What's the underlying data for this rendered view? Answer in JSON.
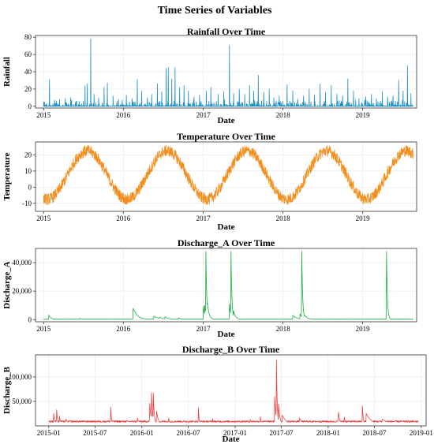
{
  "figure": {
    "title": "Time Series of Variables"
  },
  "chart_data": [
    {
      "id": "rainfall",
      "type": "line",
      "title": "Rainfall Over Time",
      "xlabel": "Date",
      "ylabel": "Rainfall",
      "color": "#1f8fc7",
      "xlim": [
        "2014-11-25",
        "2019-09-05"
      ],
      "ylim": [
        -2,
        82
      ],
      "xticks": [
        "2015-01-01",
        "2016-01-01",
        "2017-01-01",
        "2018-01-01",
        "2019-01-01"
      ],
      "xtick_labels": [
        "2015",
        "2016",
        "2017",
        "2018",
        "2019"
      ],
      "yticks": [
        0,
        20,
        40,
        60,
        80
      ],
      "ytick_labels": [
        "0",
        "20",
        "40",
        "60",
        "80"
      ],
      "grid": true,
      "series": [
        {
          "x_start": "2015-01-01",
          "x_end": "2019-08-20",
          "baseline": 0,
          "spikes": [
            [
              "2015-01-28",
              31
            ],
            [
              "2015-02-20",
              7
            ],
            [
              "2015-03-15",
              8
            ],
            [
              "2015-04-10",
              9
            ],
            [
              "2015-05-05",
              10
            ],
            [
              "2015-06-01",
              6
            ],
            [
              "2015-07-10",
              24
            ],
            [
              "2015-07-20",
              26
            ],
            [
              "2015-08-05",
              78
            ],
            [
              "2015-08-20",
              14
            ],
            [
              "2015-09-10",
              10
            ],
            [
              "2015-10-05",
              22
            ],
            [
              "2015-10-20",
              27
            ],
            [
              "2015-11-15",
              12
            ],
            [
              "2015-12-10",
              8
            ],
            [
              "2016-01-15",
              13
            ],
            [
              "2016-02-10",
              9
            ],
            [
              "2016-03-05",
              31
            ],
            [
              "2016-03-25",
              18
            ],
            [
              "2016-04-20",
              10
            ],
            [
              "2016-05-10",
              14
            ],
            [
              "2016-06-05",
              26
            ],
            [
              "2016-06-25",
              17
            ],
            [
              "2016-07-15",
              44
            ],
            [
              "2016-07-25",
              45
            ],
            [
              "2016-08-10",
              32
            ],
            [
              "2016-08-25",
              45
            ],
            [
              "2016-09-15",
              22
            ],
            [
              "2016-10-05",
              24
            ],
            [
              "2016-10-25",
              18
            ],
            [
              "2016-11-20",
              11
            ],
            [
              "2016-12-15",
              13
            ],
            [
              "2017-01-15",
              18
            ],
            [
              "2017-02-05",
              22
            ],
            [
              "2017-03-10",
              14
            ],
            [
              "2017-04-05",
              17
            ],
            [
              "2017-05-01",
              71
            ],
            [
              "2017-05-20",
              15
            ],
            [
              "2017-06-15",
              20
            ],
            [
              "2017-07-10",
              14
            ],
            [
              "2017-08-01",
              24
            ],
            [
              "2017-08-20",
              18
            ],
            [
              "2017-09-10",
              36
            ],
            [
              "2017-10-05",
              16
            ],
            [
              "2017-10-30",
              20
            ],
            [
              "2017-11-20",
              10
            ],
            [
              "2017-12-15",
              12
            ],
            [
              "2018-01-20",
              25
            ],
            [
              "2018-02-15",
              18
            ],
            [
              "2018-03-10",
              8
            ],
            [
              "2018-04-05",
              12
            ],
            [
              "2018-05-01",
              20
            ],
            [
              "2018-05-25",
              13
            ],
            [
              "2018-06-20",
              26
            ],
            [
              "2018-07-15",
              16
            ],
            [
              "2018-08-10",
              24
            ],
            [
              "2018-09-05",
              14
            ],
            [
              "2018-10-01",
              12
            ],
            [
              "2018-10-25",
              32
            ],
            [
              "2018-11-20",
              18
            ],
            [
              "2018-12-15",
              9
            ],
            [
              "2019-01-15",
              11
            ],
            [
              "2019-02-10",
              14
            ],
            [
              "2019-03-05",
              9
            ],
            [
              "2019-04-01",
              17
            ],
            [
              "2019-04-25",
              11
            ],
            [
              "2019-05-20",
              12
            ],
            [
              "2019-06-15",
              30
            ],
            [
              "2019-07-05",
              18
            ],
            [
              "2019-07-25",
              47
            ],
            [
              "2019-08-10",
              15
            ]
          ]
        }
      ]
    },
    {
      "id": "temperature",
      "type": "line",
      "title": "Temperature Over Time",
      "xlabel": "Date",
      "ylabel": "Temperature",
      "color": "#f28e1c",
      "xlim": [
        "2014-11-25",
        "2019-09-05"
      ],
      "ylim": [
        -15,
        28
      ],
      "xticks": [
        "2015-01-01",
        "2016-01-01",
        "2017-01-01",
        "2018-01-01",
        "2019-01-01"
      ],
      "xtick_labels": [
        "2015",
        "2016",
        "2017",
        "2018",
        "2019"
      ],
      "yticks": [
        -10,
        0,
        10,
        20
      ],
      "ytick_labels": [
        "-10",
        "0",
        "10",
        "20"
      ],
      "grid": true,
      "series": [
        {
          "x_start": "2015-01-01",
          "x_end": "2019-08-20",
          "seasonal_mean": 7.5,
          "seasonal_amplitude": 15,
          "peak_day_of_year": 200,
          "noise": 3.5
        }
      ]
    },
    {
      "id": "discharge_a",
      "type": "line",
      "title": "Discharge_A Over Time",
      "xlabel": "Date",
      "ylabel": "Discharge_A",
      "color": "#1aab40",
      "xlim": [
        "2014-11-25",
        "2019-09-05"
      ],
      "ylim": [
        -1500,
        50000
      ],
      "xticks": [
        "2015-01-01",
        "2016-01-01",
        "2017-01-01",
        "2018-01-01",
        "2019-01-01"
      ],
      "xtick_labels": [
        "2015",
        "2016",
        "2017",
        "2018",
        "2019"
      ],
      "yticks": [
        0,
        20000,
        40000
      ],
      "ytick_labels": [
        "0",
        "20,000",
        "40,000"
      ],
      "grid": true,
      "series": [
        {
          "x_start": "2015-01-01",
          "x_end": "2019-08-20",
          "baseline": 300,
          "events": [
            [
              "2015-01-25",
              3200,
              12
            ],
            [
              "2015-06-15",
              900,
              10
            ],
            [
              "2016-02-15",
              8000,
              20
            ],
            [
              "2016-05-20",
              2500,
              25
            ],
            [
              "2016-06-15",
              1800,
              20
            ],
            [
              "2016-07-10",
              2000,
              18
            ],
            [
              "2016-09-10",
              1200,
              15
            ],
            [
              "2017-01-02",
              9500,
              6
            ],
            [
              "2017-01-08",
              10000,
              6
            ],
            [
              "2017-01-13",
              48000,
              4
            ],
            [
              "2017-01-20",
              12000,
              8
            ],
            [
              "2017-05-01",
              11000,
              6
            ],
            [
              "2017-05-08",
              48000,
              4
            ],
            [
              "2017-05-20",
              6000,
              10
            ],
            [
              "2018-02-15",
              3000,
              20
            ],
            [
              "2018-03-20",
              4000,
              10
            ],
            [
              "2018-03-28",
              48000,
              4
            ],
            [
              "2018-04-10",
              3000,
              15
            ],
            [
              "2019-04-20",
              48000,
              4
            ]
          ]
        }
      ]
    },
    {
      "id": "discharge_b",
      "type": "line",
      "title": "Discharge_B Over Time",
      "xlabel": "Date",
      "ylabel": "Discharge_B",
      "color": "#f04040",
      "xlim": [
        "2014-11-10",
        "2019-01-20"
      ],
      "ylim": [
        0,
        145000
      ],
      "xticks": [
        "2015-01-01",
        "2015-07-01",
        "2016-01-01",
        "2016-07-01",
        "2017-01-01",
        "2017-07-01",
        "2018-01-01",
        "2018-07-01",
        "2019-01-01"
      ],
      "xtick_labels": [
        "2015-01",
        "2015-07",
        "2016-01",
        "2016-07",
        "2017-01",
        "2017-07",
        "2018-01",
        "2018-07",
        "2019-01"
      ],
      "yticks": [
        50000,
        100000
      ],
      "ytick_labels": [
        "50,000",
        "100,000"
      ],
      "grid": true,
      "series": [
        {
          "x_start": "2015-01-01",
          "x_end": "2018-12-20",
          "baseline": 9000,
          "events": [
            [
              "2015-01-20",
              25000,
              5
            ],
            [
              "2015-02-01",
              33000,
              4
            ],
            [
              "2015-02-12",
              20000,
              5
            ],
            [
              "2015-03-10",
              14000,
              6
            ],
            [
              "2015-09-01",
              38000,
              3
            ],
            [
              "2015-12-15",
              16000,
              6
            ],
            [
              "2016-02-01",
              46000,
              6
            ],
            [
              "2016-02-08",
              68000,
              4
            ],
            [
              "2016-02-15",
              67000,
              4
            ],
            [
              "2016-02-28",
              30000,
              8
            ],
            [
              "2016-04-15",
              15000,
              8
            ],
            [
              "2016-08-10",
              37000,
              3
            ],
            [
              "2016-10-05",
              14000,
              5
            ],
            [
              "2017-03-01",
              13000,
              5
            ],
            [
              "2017-04-10",
              19000,
              4
            ],
            [
              "2017-06-05",
              60000,
              5
            ],
            [
              "2017-06-12",
              135000,
              3
            ],
            [
              "2017-06-20",
              45000,
              6
            ],
            [
              "2017-07-05",
              22000,
              20
            ],
            [
              "2017-09-10",
              16000,
              15
            ],
            [
              "2018-02-10",
              28000,
              6
            ],
            [
              "2018-03-05",
              18000,
              6
            ],
            [
              "2018-05-15",
              41000,
              4
            ],
            [
              "2018-05-30",
              25000,
              25
            ],
            [
              "2018-08-01",
              14000,
              30
            ]
          ]
        }
      ]
    }
  ]
}
